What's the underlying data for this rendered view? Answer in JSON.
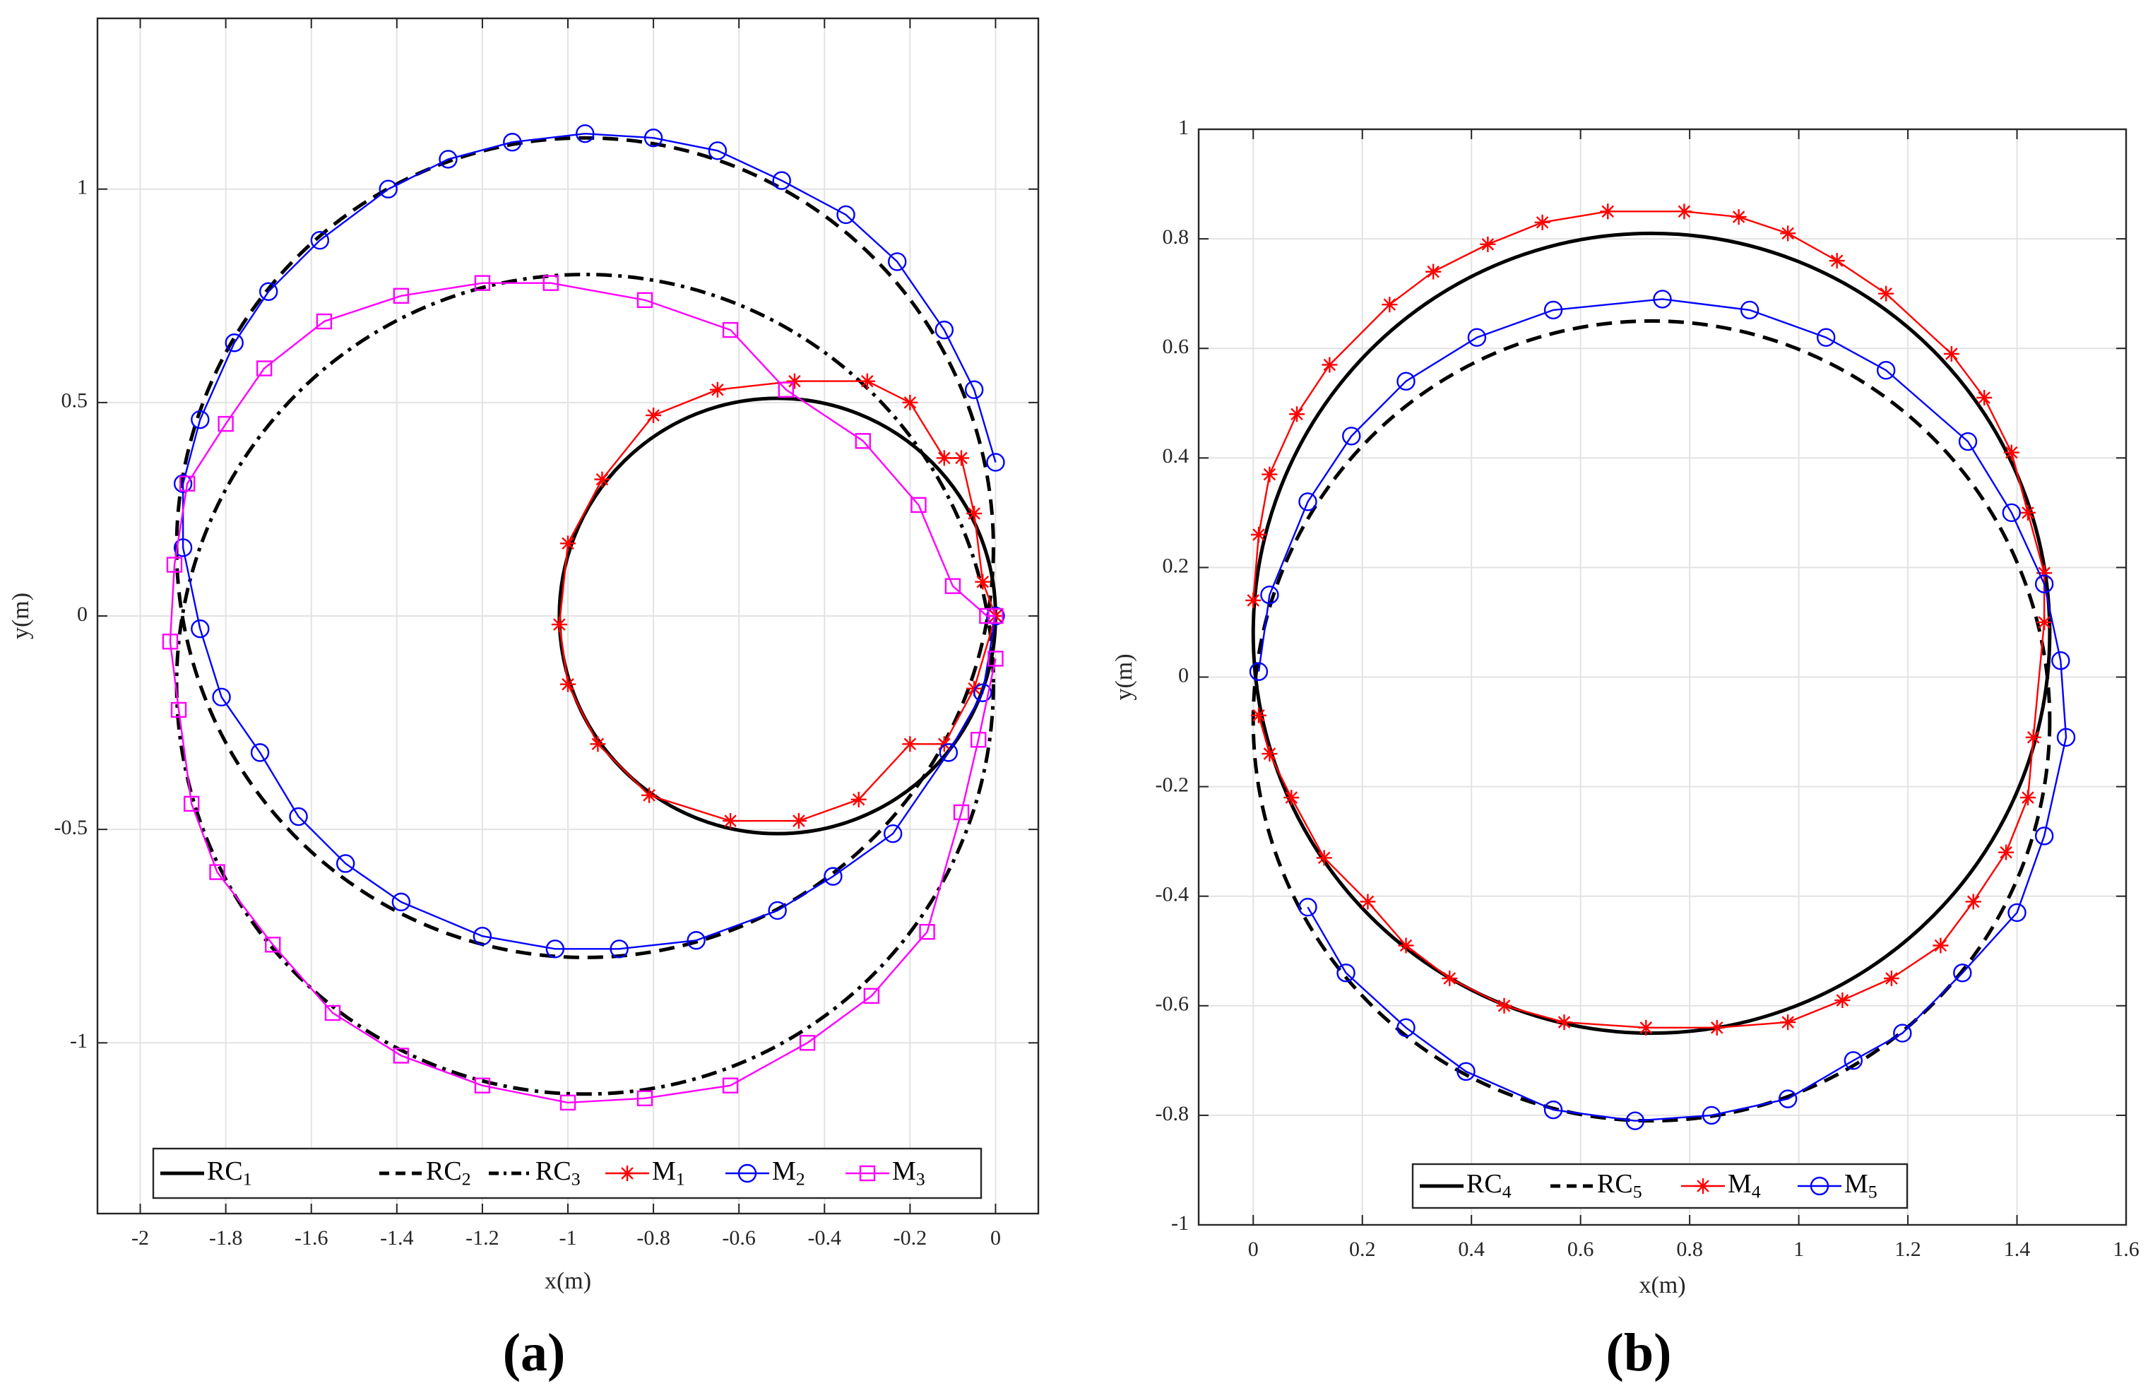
{
  "figure": {
    "colors": {
      "reference": "#000000",
      "m1": "#ff0000",
      "m2": "#0000ff",
      "m3": "#ff00ff",
      "grid": "#e3e3e3",
      "axis": "#262626"
    },
    "panel_labels": [
      "(a)",
      "(b)"
    ]
  },
  "chart_data": [
    {
      "type": "line",
      "panel_label": "(a)",
      "xlabel": "x(m)",
      "ylabel": "y(m)",
      "xlim": [
        -2.1,
        0.1
      ],
      "ylim": [
        -1.4,
        1.4
      ],
      "xticks": [
        -2,
        -1.8,
        -1.6,
        -1.4,
        -1.2,
        -1,
        -0.8,
        -0.6,
        -0.4,
        -0.2,
        0
      ],
      "xtick_labels": [
        "-2",
        "-1.8",
        "-1.6",
        "-1.4",
        "-1.2",
        "-1",
        "-0.8",
        "-0.6",
        "-0.4",
        "-0.2",
        "0"
      ],
      "yticks": [
        -1,
        -0.5,
        0,
        0.5,
        1
      ],
      "ytick_labels": [
        "-1",
        "-0.5",
        "0",
        "0.5",
        "1"
      ],
      "grid": true,
      "legend_position": "bottom-center",
      "legend_orientation": "horizontal",
      "series": [
        {
          "name": "RC",
          "sub": "1",
          "role": "reference",
          "dash": "solid",
          "color": "#000000",
          "circle": {
            "cx": -0.51,
            "cy": 0.0,
            "rx": 0.51,
            "ry": 0.51
          }
        },
        {
          "name": "RC",
          "sub": "2",
          "role": "reference",
          "dash": "dashed",
          "color": "#000000",
          "circle": {
            "cx": -0.96,
            "cy": 0.16,
            "rx": 0.955,
            "ry": 0.96
          }
        },
        {
          "name": "RC",
          "sub": "3",
          "role": "reference",
          "dash": "dashdot",
          "color": "#000000",
          "circle": {
            "cx": -0.96,
            "cy": -0.16,
            "rx": 0.955,
            "ry": 0.96
          }
        },
        {
          "name": "M",
          "sub": "1",
          "role": "measured",
          "marker": "star",
          "color": "#ff0000",
          "x": [
            0,
            -0.03,
            -0.05,
            -0.08,
            -0.12,
            -0.2,
            -0.3,
            -0.47,
            -0.65,
            -0.8,
            -0.92,
            -1.0,
            -1.02,
            -1.0,
            -0.93,
            -0.81,
            -0.62,
            -0.46,
            -0.32,
            -0.2,
            -0.12,
            -0.05,
            0
          ],
          "y": [
            0,
            0.08,
            0.24,
            0.37,
            0.37,
            0.5,
            0.55,
            0.55,
            0.53,
            0.47,
            0.32,
            0.17,
            -0.02,
            -0.16,
            -0.3,
            -0.42,
            -0.48,
            -0.48,
            -0.43,
            -0.3,
            -0.3,
            -0.17,
            0
          ]
        },
        {
          "name": "M",
          "sub": "2",
          "role": "measured",
          "marker": "circle",
          "color": "#0000ff",
          "x": [
            0,
            -0.05,
            -0.12,
            -0.23,
            -0.35,
            -0.5,
            -0.65,
            -0.8,
            -0.96,
            -1.13,
            -1.28,
            -1.42,
            -1.58,
            -1.7,
            -1.78,
            -1.86,
            -1.9,
            -1.9,
            -1.86,
            -1.81,
            -1.72,
            -1.63,
            -1.52,
            -1.39,
            -1.2,
            -1.03,
            -0.88,
            -0.7,
            -0.51,
            -0.38,
            -0.24,
            -0.11,
            -0.03,
            0
          ],
          "y": [
            0.36,
            0.53,
            0.67,
            0.83,
            0.94,
            1.02,
            1.09,
            1.12,
            1.13,
            1.11,
            1.07,
            1.0,
            0.88,
            0.76,
            0.64,
            0.46,
            0.31,
            0.16,
            -0.03,
            -0.19,
            -0.32,
            -0.47,
            -0.58,
            -0.67,
            -0.75,
            -0.78,
            -0.78,
            -0.76,
            -0.69,
            -0.61,
            -0.51,
            -0.32,
            -0.18,
            0
          ]
        },
        {
          "name": "M",
          "sub": "3",
          "role": "measured",
          "marker": "square",
          "color": "#ff00ff",
          "x": [
            0,
            -0.04,
            -0.08,
            -0.16,
            -0.29,
            -0.44,
            -0.62,
            -0.82,
            -1.0,
            -1.2,
            -1.39,
            -1.55,
            -1.69,
            -1.82,
            -1.88,
            -1.91,
            -1.93,
            -1.92,
            -1.89,
            -1.8,
            -1.71,
            -1.57,
            -1.39,
            -1.2,
            -1.04,
            -0.82,
            -0.62,
            -0.49,
            -0.31,
            -0.18,
            -0.1,
            -0.02,
            0
          ],
          "y": [
            -0.1,
            -0.29,
            -0.46,
            -0.74,
            -0.89,
            -1.0,
            -1.1,
            -1.13,
            -1.14,
            -1.1,
            -1.03,
            -0.93,
            -0.77,
            -0.6,
            -0.44,
            -0.22,
            -0.06,
            0.12,
            0.31,
            0.45,
            0.58,
            0.69,
            0.75,
            0.78,
            0.78,
            0.74,
            0.67,
            0.53,
            0.41,
            0.26,
            0.07,
            0,
            0
          ]
        }
      ]
    },
    {
      "type": "line",
      "panel_label": "(b)",
      "xlabel": "x(m)",
      "ylabel": "y(m)",
      "xlim": [
        -0.1,
        1.6
      ],
      "ylim": [
        -1,
        1
      ],
      "xticks": [
        0,
        0.2,
        0.4,
        0.6,
        0.8,
        1,
        1.2,
        1.4,
        1.6
      ],
      "xtick_labels": [
        "0",
        "0.2",
        "0.4",
        "0.6",
        "0.8",
        "1",
        "1.2",
        "1.4",
        "1.6"
      ],
      "yticks": [
        -1,
        -0.8,
        -0.6,
        -0.4,
        -0.2,
        0,
        0.2,
        0.4,
        0.6,
        0.8,
        1
      ],
      "ytick_labels": [
        "-1",
        "-0.8",
        "-0.6",
        "-0.4",
        "-0.2",
        "0",
        "0.2",
        "0.4",
        "0.6",
        "0.8",
        "1"
      ],
      "grid": true,
      "legend_position": "bottom-center",
      "legend_orientation": "horizontal",
      "series": [
        {
          "name": "RC",
          "sub": "4",
          "role": "reference",
          "dash": "solid",
          "color": "#000000",
          "circle": {
            "cx": 0.73,
            "cy": 0.08,
            "rx": 0.73,
            "ry": 0.73
          }
        },
        {
          "name": "RC",
          "sub": "5",
          "role": "reference",
          "dash": "dashed",
          "color": "#000000",
          "circle": {
            "cx": 0.73,
            "cy": -0.08,
            "rx": 0.73,
            "ry": 0.73
          }
        },
        {
          "name": "M",
          "sub": "4",
          "role": "measured",
          "marker": "star",
          "color": "#ff0000",
          "x": [
            0,
            0.01,
            0.03,
            0.08,
            0.14,
            0.25,
            0.33,
            0.43,
            0.53,
            0.65,
            0.79,
            0.89,
            0.98,
            1.07,
            1.16,
            1.28,
            1.34,
            1.39,
            1.42,
            1.45,
            1.45,
            1.43,
            1.42,
            1.38,
            1.32,
            1.26,
            1.17,
            1.08,
            0.98,
            0.85,
            0.72,
            0.57,
            0.46,
            0.36,
            0.28,
            0.21,
            0.13,
            0.07,
            0.03,
            0.01
          ],
          "y": [
            0.14,
            0.26,
            0.37,
            0.48,
            0.57,
            0.68,
            0.74,
            0.79,
            0.83,
            0.85,
            0.85,
            0.84,
            0.81,
            0.76,
            0.7,
            0.59,
            0.51,
            0.41,
            0.3,
            0.19,
            0.1,
            -0.11,
            -0.22,
            -0.32,
            -0.41,
            -0.49,
            -0.55,
            -0.59,
            -0.63,
            -0.64,
            -0.64,
            -0.63,
            -0.6,
            -0.55,
            -0.49,
            -0.41,
            -0.33,
            -0.22,
            -0.14,
            -0.07
          ]
        },
        {
          "name": "M",
          "sub": "5",
          "role": "measured",
          "marker": "circle",
          "color": "#0000ff",
          "x": [
            0.01,
            0.03,
            0.1,
            0.18,
            0.28,
            0.41,
            0.55,
            0.75,
            0.91,
            1.05,
            1.16,
            1.31,
            1.39,
            1.45,
            1.48,
            1.49,
            1.45,
            1.4,
            1.3,
            1.19,
            1.1,
            0.98,
            0.84,
            0.7,
            0.55,
            0.39,
            0.28,
            0.17,
            0.1
          ],
          "y": [
            0.01,
            0.15,
            0.32,
            0.44,
            0.54,
            0.62,
            0.67,
            0.69,
            0.67,
            0.62,
            0.56,
            0.43,
            0.3,
            0.17,
            0.03,
            -0.11,
            -0.29,
            -0.43,
            -0.54,
            -0.65,
            -0.7,
            -0.77,
            -0.8,
            -0.81,
            -0.79,
            -0.72,
            -0.64,
            -0.54,
            -0.42
          ]
        }
      ]
    }
  ]
}
